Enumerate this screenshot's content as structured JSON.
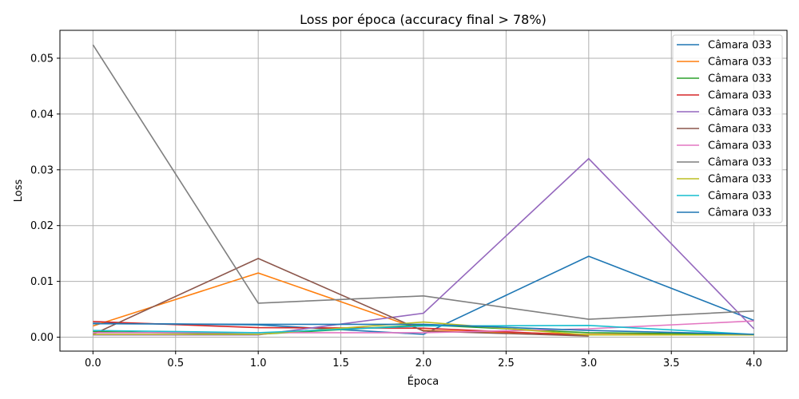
{
  "chart_data": {
    "type": "line",
    "title": "Loss por época (accuracy final > 78%)",
    "xlabel": "Época",
    "ylabel": "Loss",
    "xlim": [
      -0.2,
      4.2
    ],
    "ylim": [
      -0.0025,
      0.055
    ],
    "xticks": [
      0.0,
      0.5,
      1.0,
      1.5,
      2.0,
      2.5,
      3.0,
      3.5,
      4.0
    ],
    "xtick_labels": [
      "0.0",
      "0.5",
      "1.0",
      "1.5",
      "2.0",
      "2.5",
      "3.0",
      "3.5",
      "4.0"
    ],
    "yticks": [
      0.0,
      0.01,
      0.02,
      0.03,
      0.04,
      0.05
    ],
    "ytick_labels": [
      "0.00",
      "0.01",
      "0.02",
      "0.03",
      "0.04",
      "0.05"
    ],
    "grid": true,
    "legend_position": "top-right",
    "x": [
      0,
      1,
      2,
      3,
      4
    ],
    "series": [
      {
        "name": "Câmara 033",
        "color": "#1f77b4",
        "values": [
          0.0025,
          0.0022,
          0.0005,
          0.0145,
          0.003
        ]
      },
      {
        "name": "Câmara 033",
        "color": "#ff7f0e",
        "values": [
          0.002,
          0.0115,
          0.0012,
          0.0005,
          0.0005
        ]
      },
      {
        "name": "Câmara 033",
        "color": "#2ca02c",
        "values": [
          0.001,
          0.0005,
          0.0022,
          0.0008,
          0.0005
        ]
      },
      {
        "name": "Câmara 033",
        "color": "#d62728",
        "values": [
          0.0028,
          0.0017,
          0.0016,
          0.0003,
          null
        ]
      },
      {
        "name": "Câmara 033",
        "color": "#9467bd",
        "values": [
          0.0004,
          0.0004,
          0.0043,
          0.032,
          0.0015
        ]
      },
      {
        "name": "Câmara 033",
        "color": "#8c564b",
        "values": [
          0.0005,
          0.0141,
          0.0011,
          0.0002,
          null
        ]
      },
      {
        "name": "Câmara 033",
        "color": "#e377c2",
        "values": [
          0.0008,
          0.0008,
          0.0008,
          0.0015,
          0.0029
        ]
      },
      {
        "name": "Câmara 033",
        "color": "#7f7f7f",
        "values": [
          0.0524,
          0.0061,
          0.0074,
          0.0032,
          0.0047
        ]
      },
      {
        "name": "Câmara 033",
        "color": "#bcbd22",
        "values": [
          0.0005,
          0.0005,
          0.0027,
          0.0004,
          0.0004
        ]
      },
      {
        "name": "Câmara 033",
        "color": "#17becf",
        "values": [
          0.0012,
          0.0008,
          0.002,
          0.0021,
          0.0005
        ]
      },
      {
        "name": "Câmara 033",
        "color": "#1f77b4",
        "values": [
          0.0024,
          0.0023,
          0.0023,
          0.0012,
          0.0005
        ]
      }
    ]
  }
}
